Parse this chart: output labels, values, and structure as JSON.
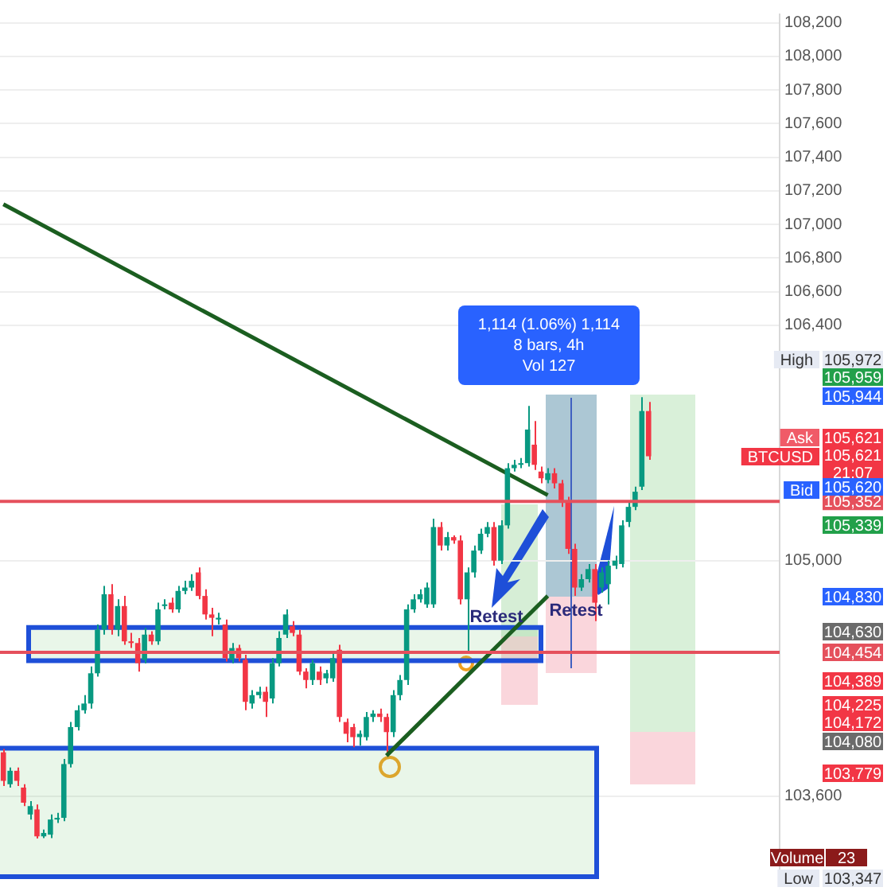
{
  "chart_data": {
    "type": "candlestick",
    "categories": [
      null,
      null,
      null,
      null,
      null,
      null,
      null,
      null,
      null,
      null,
      null,
      null,
      null,
      null,
      null,
      null,
      null,
      null,
      null,
      null,
      null,
      null,
      null,
      null,
      null,
      null,
      null,
      null,
      null,
      null,
      null,
      null,
      null,
      null,
      null,
      null,
      null,
      null,
      null,
      null,
      null,
      null,
      null,
      null,
      null,
      null,
      null,
      null,
      null,
      null,
      null,
      null,
      null,
      null,
      null,
      null,
      null,
      null,
      null,
      null,
      null,
      null,
      null,
      null,
      null,
      null,
      null,
      null,
      null,
      null,
      null,
      null,
      null,
      null,
      null,
      null,
      null,
      null,
      null,
      null,
      null,
      null,
      null,
      null,
      null,
      null,
      null,
      null,
      null,
      null,
      null,
      null,
      null,
      null,
      null,
      null,
      null,
      null,
      null,
      null,
      null,
      null,
      null,
      null,
      null,
      null,
      null,
      null,
      null,
      null,
      null,
      null,
      null,
      null,
      null,
      null
    ],
    "ohlc": [
      [
        103860,
        103880,
        103660,
        103690
      ],
      [
        103670,
        103770,
        103650,
        103750
      ],
      [
        103750,
        103770,
        103660,
        103690
      ],
      [
        103650,
        103670,
        103540,
        103560
      ],
      [
        103490,
        103570,
        103460,
        103540
      ],
      [
        103520,
        103550,
        103347,
        103360
      ],
      [
        103360,
        103400,
        103350,
        103380
      ],
      [
        103370,
        103490,
        103350,
        103460
      ],
      [
        103460,
        103500,
        103440,
        103470
      ],
      [
        103470,
        103820,
        103450,
        103790
      ],
      [
        103790,
        104040,
        103770,
        104010
      ],
      [
        104010,
        104140,
        103990,
        104110
      ],
      [
        104110,
        104200,
        104090,
        104150
      ],
      [
        104150,
        104370,
        104120,
        104330
      ],
      [
        104330,
        104620,
        104310,
        104590
      ],
      [
        104590,
        104850,
        104560,
        104800
      ],
      [
        104800,
        104860,
        104560,
        104590
      ],
      [
        104590,
        104770,
        104550,
        104730
      ],
      [
        104730,
        104790,
        104500,
        104520
      ],
      [
        104520,
        104570,
        104480,
        104510
      ],
      [
        104510,
        104540,
        104340,
        104390
      ],
      [
        104410,
        104600,
        104390,
        104560
      ],
      [
        104560,
        104580,
        104500,
        104520
      ],
      [
        104520,
        104750,
        104500,
        104710
      ],
      [
        104730,
        104770,
        104710,
        104740
      ],
      [
        104750,
        104780,
        104690,
        104710
      ],
      [
        104710,
        104850,
        104690,
        104820
      ],
      [
        104820,
        104880,
        104800,
        104840
      ],
      [
        104840,
        104920,
        104820,
        104880
      ],
      [
        104930,
        104960,
        104770,
        104790
      ],
      [
        104790,
        104830,
        104650,
        104680
      ],
      [
        104680,
        104720,
        104550,
        104660
      ],
      [
        104650,
        104690,
        104620,
        104660
      ],
      [
        104620,
        104650,
        104400,
        104420
      ],
      [
        104410,
        104510,
        104390,
        104480
      ],
      [
        104480,
        104500,
        104400,
        104420
      ],
      [
        104410,
        104440,
        104110,
        104160
      ],
      [
        104150,
        104230,
        104120,
        104200
      ],
      [
        104200,
        104250,
        104180,
        104220
      ],
      [
        104220,
        104250,
        104070,
        104160
      ],
      [
        104180,
        104420,
        104150,
        104390
      ],
      [
        104390,
        104580,
        104370,
        104540
      ],
      [
        104560,
        104710,
        104540,
        104680
      ],
      [
        104610,
        104640,
        104550,
        104570
      ],
      [
        104560,
        104590,
        104320,
        104340
      ],
      [
        104340,
        104360,
        104240,
        104290
      ],
      [
        104290,
        104410,
        104260,
        104390
      ],
      [
        104340,
        104370,
        104260,
        104290
      ],
      [
        104300,
        104350,
        104270,
        104330
      ],
      [
        104300,
        104450,
        104280,
        104420
      ],
      [
        104470,
        104500,
        104040,
        104070
      ],
      [
        104040,
        104060,
        103920,
        103970
      ],
      [
        104010,
        104030,
        103890,
        103950
      ],
      [
        103950,
        103990,
        103900,
        103970
      ],
      [
        103950,
        104100,
        103930,
        104070
      ],
      [
        104070,
        104110,
        104040,
        104090
      ],
      [
        104090,
        104120,
        104040,
        104070
      ],
      [
        104070,
        104090,
        103850,
        103980
      ],
      [
        103980,
        104230,
        103950,
        104200
      ],
      [
        104200,
        104320,
        104170,
        104290
      ],
      [
        104290,
        104740,
        104260,
        104710
      ],
      [
        104710,
        104800,
        104690,
        104770
      ],
      [
        104770,
        104830,
        104750,
        104800
      ],
      [
        104740,
        104870,
        104720,
        104840
      ],
      [
        104740,
        105250,
        104720,
        105200
      ],
      [
        105200,
        105230,
        105060,
        105090
      ],
      [
        105090,
        105170,
        105060,
        105140
      ],
      [
        105140,
        105150,
        105100,
        105120
      ],
      [
        105120,
        105150,
        104740,
        104770
      ],
      [
        104770,
        104960,
        104450,
        104930
      ],
      [
        104930,
        105090,
        104900,
        105060
      ],
      [
        105060,
        105190,
        105040,
        105160
      ],
      [
        105160,
        105230,
        105140,
        105200
      ],
      [
        105200,
        105230,
        104970,
        105000
      ],
      [
        105000,
        105240,
        104980,
        105210
      ],
      [
        105210,
        105580,
        105190,
        105550
      ],
      [
        105550,
        105600,
        105530,
        105570
      ],
      [
        105570,
        105610,
        105550,
        105580
      ],
      [
        105580,
        105920,
        105560,
        105780
      ],
      [
        105690,
        105830,
        105540,
        105570
      ],
      [
        105530,
        105560,
        105460,
        105490
      ],
      [
        105480,
        105550,
        105460,
        105520
      ],
      [
        105520,
        105550,
        105430,
        105460
      ],
      [
        105460,
        105480,
        105320,
        105350
      ],
      [
        105350,
        105380,
        105040,
        105070
      ],
      [
        105070,
        105100,
        104790,
        104840
      ],
      [
        104840,
        104920,
        104820,
        104890
      ],
      [
        104890,
        104980,
        104870,
        104950
      ],
      [
        104950,
        104980,
        104640,
        104750
      ],
      [
        104840,
        104960,
        104810,
        104930
      ],
      [
        104860,
        105000,
        104740,
        104970
      ],
      [
        104970,
        105030,
        104950,
        105000
      ],
      [
        104980,
        105240,
        104960,
        105210
      ],
      [
        105230,
        105350,
        105200,
        105320
      ],
      [
        105320,
        105440,
        105300,
        105410
      ],
      [
        105440,
        105972,
        105420,
        105890
      ],
      [
        105890,
        105944,
        105600,
        105621
      ],
      null,
      null,
      null,
      null,
      null,
      null,
      null,
      null,
      null,
      null,
      null,
      null,
      null,
      null,
      null,
      null,
      null,
      null,
      null
    ],
    "series": [
      {
        "type": "line",
        "color": "#1b5e20",
        "values": [
          107120,
          null,
          null,
          null,
          null,
          null,
          null,
          null,
          null,
          null,
          null,
          null,
          null,
          null,
          null,
          null,
          null,
          null,
          null,
          null,
          null,
          null,
          null,
          null,
          null,
          null,
          null,
          null,
          null,
          null,
          null,
          null,
          null,
          null,
          null,
          null,
          null,
          null,
          null,
          null,
          null,
          null,
          null,
          null,
          null,
          null,
          null,
          null,
          null,
          null,
          null,
          null,
          null,
          null,
          null,
          null,
          null,
          null,
          null,
          null,
          null,
          null,
          null,
          null,
          null,
          null,
          null,
          null,
          null,
          null,
          null,
          null,
          null,
          null,
          null,
          null,
          null,
          null,
          null,
          null,
          null,
          105390,
          null,
          null,
          null,
          null,
          null,
          null,
          null,
          null,
          null,
          null,
          null,
          null,
          null,
          null,
          null,
          null,
          null,
          null,
          null,
          null,
          null,
          null,
          null,
          null,
          null,
          null,
          null,
          null,
          null,
          null,
          null,
          null,
          null,
          null
        ]
      },
      {
        "type": "line",
        "color": "#1b5e20",
        "values": [
          null,
          null,
          null,
          null,
          null,
          null,
          null,
          null,
          null,
          null,
          null,
          null,
          null,
          null,
          null,
          null,
          null,
          null,
          null,
          null,
          null,
          null,
          null,
          null,
          null,
          null,
          null,
          null,
          null,
          null,
          null,
          null,
          null,
          null,
          null,
          null,
          null,
          null,
          null,
          null,
          null,
          null,
          null,
          null,
          null,
          null,
          null,
          null,
          null,
          null,
          null,
          null,
          null,
          null,
          null,
          null,
          null,
          103840,
          null,
          null,
          null,
          null,
          null,
          null,
          null,
          null,
          null,
          null,
          null,
          null,
          null,
          null,
          null,
          null,
          null,
          null,
          null,
          null,
          null,
          null,
          null,
          104790,
          null,
          null,
          null,
          null,
          null,
          null,
          null,
          null,
          null,
          null,
          null,
          null,
          null,
          null,
          null,
          null,
          null,
          null,
          null,
          null,
          null,
          null,
          null,
          null,
          null,
          null,
          null,
          null,
          null,
          null,
          null,
          null,
          null,
          null
        ]
      }
    ],
    "ylim": [
      103120,
      108250
    ],
    "yticks": [
      {
        "value": 103600,
        "label": "103,600"
      },
      {
        "value": 105000,
        "label": "105,000"
      },
      {
        "value": 106400,
        "label": "106,400"
      },
      {
        "value": 106600,
        "label": "106,600"
      },
      {
        "value": 106800,
        "label": "106,800"
      },
      {
        "value": 107000,
        "label": "107,000"
      },
      {
        "value": 107200,
        "label": "107,200"
      },
      {
        "value": 107400,
        "label": "107,400"
      },
      {
        "value": 107600,
        "label": "107,600"
      },
      {
        "value": 107800,
        "label": "107,800"
      },
      {
        "value": 108000,
        "label": "108,000"
      },
      {
        "value": 108200,
        "label": "108,200"
      }
    ],
    "bands": [
      {
        "axis": "y",
        "from": 104405,
        "to": 104603,
        "color": "#78c878"
      },
      {
        "axis": "y",
        "from": 103120,
        "to": 103884,
        "color": "#78c878"
      }
    ],
    "grid": "y",
    "tick_labels": "y",
    "ref_lines": [
      {
        "axis": "y",
        "value": 105352,
        "label": "105,352",
        "color": "#e5505c"
      },
      {
        "axis": "y",
        "value": 104454,
        "label": "104,454",
        "color": "#e5505c"
      }
    ],
    "annotations": [
      "1,114 (1.06%) 1,114",
      "8 bars, 4h",
      "Vol 127",
      "Retest",
      "Retest",
      "Volume",
      "23",
      "High",
      "105,972",
      "105,959",
      "105,944",
      "Ask",
      "105,621",
      "BTCUSD",
      "105,621",
      "21:07",
      "Bid",
      "105,620",
      "105,339",
      "104,830",
      "104,630",
      "104,389",
      "104,225",
      "104,172",
      "104,080",
      "103,779",
      "Low",
      "103,347"
    ]
  }
}
